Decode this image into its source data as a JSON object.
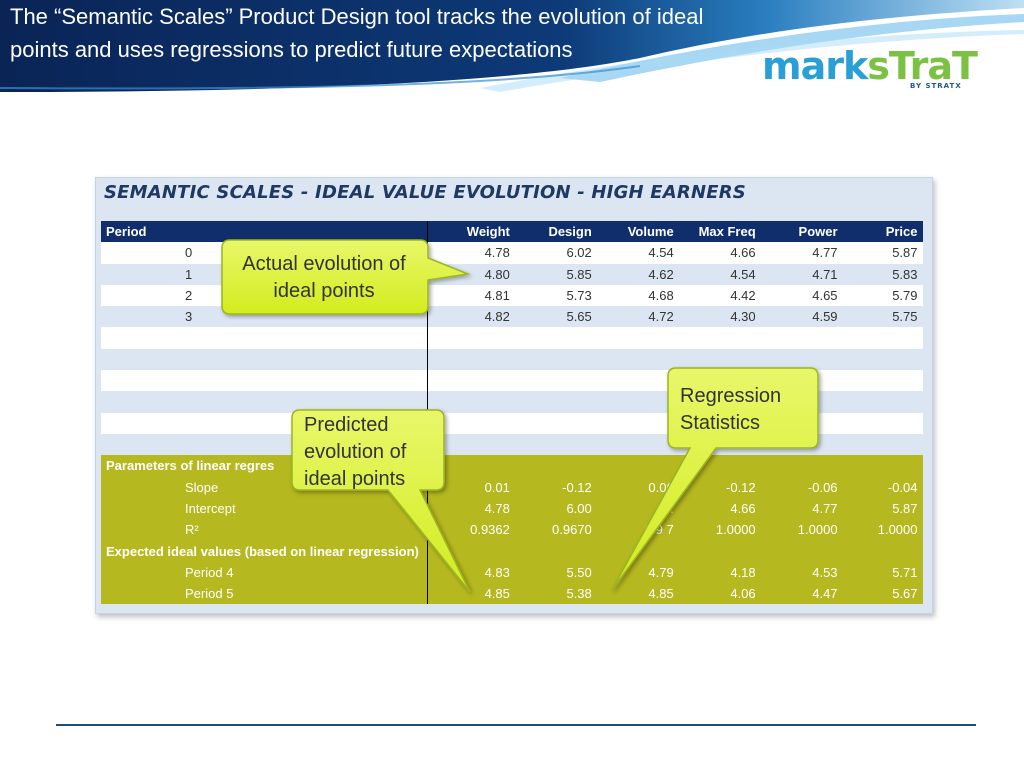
{
  "slide": {
    "title": "The “Semantic Scales” Product Design tool tracks the evolution of ideal points and uses regressions to predict future expectations"
  },
  "logo": {
    "mark": "mark",
    "strat": "sTraT",
    "byline": "BY STRATX"
  },
  "panel": {
    "title": "SEMANTIC SCALES - IDEAL VALUE EVOLUTION - HIGH EARNERS",
    "headers": [
      "Period",
      "Weight",
      "Design",
      "Volume",
      "Max Freq",
      "Power",
      "Price"
    ],
    "periods": [
      {
        "period": "0",
        "values": [
          "4.78",
          "6.02",
          "4.54",
          "4.66",
          "4.77",
          "5.87"
        ]
      },
      {
        "period": "1",
        "values": [
          "4.80",
          "5.85",
          "4.62",
          "4.54",
          "4.71",
          "5.83"
        ]
      },
      {
        "period": "2",
        "values": [
          "4.81",
          "5.73",
          "4.68",
          "4.42",
          "4.65",
          "5.79"
        ]
      },
      {
        "period": "3",
        "values": [
          "4.82",
          "5.65",
          "4.72",
          "4.30",
          "4.59",
          "5.75"
        ]
      }
    ],
    "params_section": "Parameters of linear regres",
    "params": [
      {
        "label": "Slope",
        "values": [
          "0.01",
          "-0.12",
          "0.06",
          "-0.12",
          "-0.06",
          "-0.04"
        ]
      },
      {
        "label": "Intercept",
        "values": [
          "4.78",
          "6.00",
          "4.",
          "4.66",
          "4.77",
          "5.87"
        ]
      },
      {
        "label": "R²",
        "values": [
          "0.9362",
          "0.9670",
          "0.9 7",
          "1.0000",
          "1.0000",
          "1.0000"
        ]
      }
    ],
    "expected_section": "Expected ideal values (based on linear regression)",
    "expected": [
      {
        "label": "Period 4",
        "values": [
          "4.83",
          "5.50",
          "4.79",
          "4.18",
          "4.53",
          "5.71"
        ]
      },
      {
        "label": "Period 5",
        "values": [
          "4.85",
          "5.38",
          "4.85",
          "4.06",
          "4.47",
          "5.67"
        ]
      }
    ]
  },
  "callouts": {
    "actual": "Actual evolution of ideal points",
    "predicted": "Predicted evolution of ideal points",
    "regression": "Regression Statistics"
  },
  "colors": {
    "banner_dark": "#0b2a5c",
    "header_row": "#0f2e6b",
    "olive": "#b5b81f",
    "callout": "#dff23a"
  }
}
